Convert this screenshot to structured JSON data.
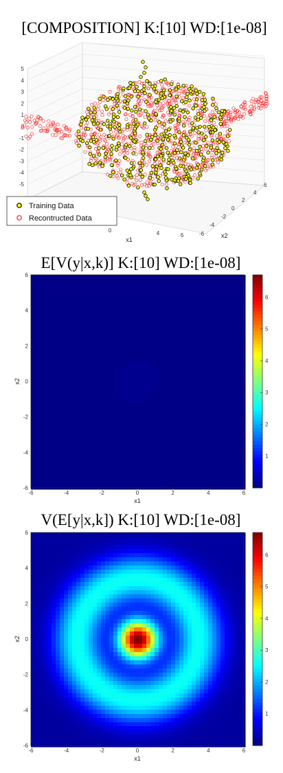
{
  "chart_data": [
    {
      "type": "scatter",
      "title": "[COMPOSITION] K:[10] WD:[1e-08]",
      "xlabel": "x1",
      "ylabel": "x2",
      "zlim": [
        -5,
        5
      ],
      "z_ticks": [
        "5",
        "4",
        "3",
        "2",
        "1",
        "0",
        "-1",
        "-2",
        "-3",
        "-4",
        "-5"
      ],
      "x_ticks": [
        "-6",
        "-4",
        "-2",
        "0",
        "2",
        "4",
        "6"
      ],
      "y_ticks": [
        "6",
        "4",
        "2",
        "0",
        "-2",
        "-4",
        "-6"
      ],
      "legend": {
        "placement": "bottom-left",
        "entries": [
          {
            "label": "Training Data",
            "marker": "filled circle",
            "color": "#ffff00",
            "edge": "#000000"
          },
          {
            "label": "Recontructed Data",
            "marker": "open circle",
            "color": "#ff0000"
          }
        ]
      },
      "series": [
        {
          "name": "Training Data",
          "color": "#ffff00"
        },
        {
          "name": "Recontructed Data",
          "color": "#ff0000"
        }
      ],
      "grid": true
    },
    {
      "type": "heatmap",
      "title": "E[V(y|x,k)] K:[10] WD:[1e-08]",
      "xlabel": "x1",
      "ylabel": "x2",
      "xlim": [
        -6,
        6
      ],
      "ylim": [
        -6,
        6
      ],
      "x_ticks": [
        "-6",
        "-4",
        "-2",
        "0",
        "2",
        "4",
        "6"
      ],
      "y_ticks": [
        "6",
        "4",
        "2",
        "0",
        "-2",
        "-4",
        "-6"
      ],
      "colorbar": {
        "range": [
          0,
          6.7
        ],
        "ticks": [
          "6",
          "5",
          "4",
          "3",
          "2",
          "1"
        ],
        "colormap": "jet"
      },
      "field": {
        "description_values": "near zero everywhere; faint disc of radius ~1.2 at origin",
        "background": 0.05,
        "center_disc_value": 0.1,
        "center_disc_radius": 1.2
      }
    },
    {
      "type": "heatmap",
      "title": "V(E[y|x,k]) K:[10] WD:[1e-08]",
      "xlabel": "x1",
      "ylabel": "x2",
      "xlim": [
        -6,
        6
      ],
      "ylim": [
        -6,
        6
      ],
      "x_ticks": [
        "-6",
        "-4",
        "-2",
        "0",
        "2",
        "4",
        "6"
      ],
      "y_ticks": [
        "6",
        "4",
        "2",
        "0",
        "-2",
        "-4",
        "-6"
      ],
      "colorbar": {
        "range": [
          0,
          6.7
        ],
        "ticks": [
          "6",
          "5",
          "4",
          "3",
          "2",
          "1"
        ],
        "colormap": "jet"
      },
      "field": {
        "center_peak": 6.6,
        "center_sigma": 0.75,
        "ring_radius": 3.4,
        "ring_peak": 2.4,
        "ring_sigma": 0.95,
        "background": 0.2
      }
    }
  ]
}
